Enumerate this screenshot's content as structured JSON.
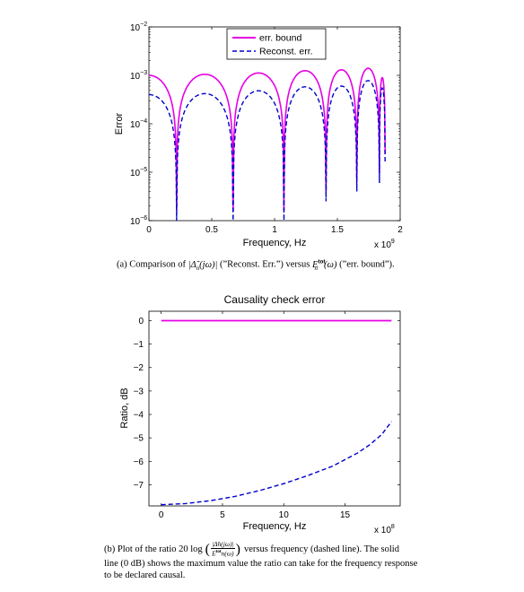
{
  "chart_data": [
    {
      "type": "line",
      "title": "",
      "xlabel": "Frequency, Hz",
      "ylabel": "Error",
      "x_multiplier": "x 10",
      "x_multiplier_exp": "9",
      "xlim": [
        0,
        2
      ],
      "ylim": [
        1e-06,
        0.01
      ],
      "yscale": "log",
      "xticks": [
        "0",
        "0.5",
        "1",
        "1.5",
        "2"
      ],
      "yticks": [
        {
          "base": "10",
          "exp": "−2"
        },
        {
          "base": "10",
          "exp": "−3"
        },
        {
          "base": "10",
          "exp": "−4"
        },
        {
          "base": "10",
          "exp": "−5"
        },
        {
          "base": "10",
          "exp": "−6"
        }
      ],
      "legend_position": "top-center",
      "series": [
        {
          "name": "err. bound",
          "color": "#e600e6",
          "style": "solid",
          "nulls": [
            0.22,
            0.67,
            1.075,
            1.41,
            1.655,
            1.835,
            1.88
          ],
          "peaks": [
            {
              "x": 0.0,
              "y": 0.001
            },
            {
              "x": 0.45,
              "y": 0.00105
            },
            {
              "x": 0.87,
              "y": 0.00112
            },
            {
              "x": 1.25,
              "y": 0.00125
            },
            {
              "x": 1.545,
              "y": 0.0013
            },
            {
              "x": 1.76,
              "y": 0.0014
            },
            {
              "x": 1.86,
              "y": 0.0009
            }
          ]
        },
        {
          "name": "Reconst. err.",
          "color": "#0000cc",
          "style": "dashed",
          "nulls": [
            0.22,
            0.67,
            1.075,
            1.41,
            1.655,
            1.835,
            1.88
          ],
          "peaks": [
            {
              "x": 0.0,
              "y": 0.0004
            },
            {
              "x": 0.45,
              "y": 0.00042
            },
            {
              "x": 0.87,
              "y": 0.00048
            },
            {
              "x": 1.25,
              "y": 0.00058
            },
            {
              "x": 1.545,
              "y": 0.0006
            },
            {
              "x": 1.76,
              "y": 0.00078
            },
            {
              "x": 1.86,
              "y": 0.00055
            }
          ]
        }
      ]
    },
    {
      "type": "line",
      "title": "Causality check error",
      "xlabel": "Frequency, Hz",
      "ylabel": "Ratio, dB",
      "x_multiplier": "x 10",
      "x_multiplier_exp": "8",
      "xlim": [
        -1,
        19.5
      ],
      "ylim": [
        -7.9,
        0.4
      ],
      "xticks": [
        0,
        5,
        10,
        15
      ],
      "yticks": [
        0,
        -1,
        -2,
        -3,
        -4,
        -5,
        -6,
        -7
      ],
      "series": [
        {
          "name": "",
          "color": "#e600e6",
          "style": "solid",
          "x": [
            0,
            18.8
          ],
          "y": [
            0,
            0
          ]
        },
        {
          "name": "",
          "color": "#0000cc",
          "style": "dashed",
          "x": [
            0,
            2,
            4,
            6,
            8,
            10,
            12,
            14,
            16,
            17,
            18,
            18.8
          ],
          "y": [
            -7.85,
            -7.8,
            -7.68,
            -7.5,
            -7.25,
            -6.95,
            -6.6,
            -6.2,
            -5.65,
            -5.3,
            -4.85,
            -4.3
          ]
        }
      ]
    }
  ],
  "captions": {
    "a": {
      "prefix": "(a) Comparison of",
      "delta_expr": "|Δ̃",
      "delta_sub": "n",
      "delta_arg": "(jω)|",
      "mid": "(”Reconst. Err.”) versus",
      "e_sym": "E",
      "e_sup": "tot",
      "e_sub": "n",
      "e_arg": "(ω)",
      "suffix": "(”err. bound”)."
    },
    "b": {
      "prefix": "(b) Plot of the ratio 20 log",
      "frac_num": "|Δ̃n(jω)|",
      "frac_den": "E",
      "frac_den_sup": "tot",
      "frac_den_rest": "n(ω)",
      "rest_line1": "versus frequency (dashed line). The solid",
      "line2": "line (0 dB) shows the maximum value the ratio can take for the frequency response",
      "line3": "to be declared causal."
    }
  }
}
